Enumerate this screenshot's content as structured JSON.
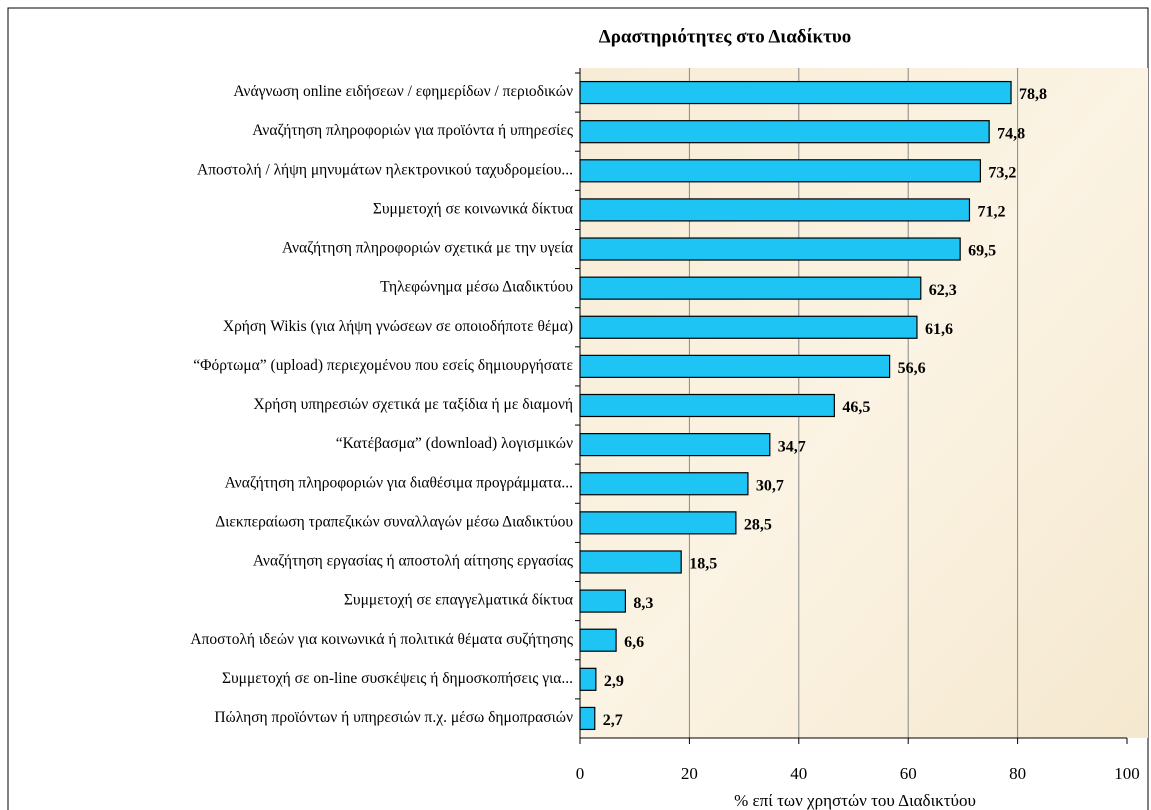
{
  "chart_data": {
    "type": "hbar",
    "title": "Δραστηριότητες στο Διαδίκτυο",
    "x_label": "% επί των χρηστών του Διαδικτύου",
    "categories": [
      "Ανάγνωση online ειδήσεων / εφημερίδων / περιοδικών",
      "Αναζήτηση πληροφοριών για προϊόντα ή υπηρεσίες",
      "Αποστολή / λήψη μηνυμάτων ηλεκτρονικού ταχυδρομείου...",
      "Συμμετοχή σε κοινωνικά δίκτυα",
      "Αναζήτηση πληροφοριών σχετικά με την υγεία",
      "Τηλεφώνημα μέσω Διαδικτύου",
      "Χρήση Wikis (για λήψη γνώσεων σε οποιοδήποτε θέμα)",
      "“Φόρτωμα” (upload) περιεχομένου που εσείς δημιουργήσατε",
      "Χρήση υπηρεσιών σχετικά με ταξίδια ή με διαμονή",
      "“Κατέβασμα” (download) λογισμικών",
      "Αναζήτηση πληροφοριών για διαθέσιμα προγράμματα...",
      "Διεκπεραίωση τραπεζικών συναλλαγών μέσω Διαδικτύου",
      "Αναζήτηση εργασίας ή αποστολή αίτησης εργασίας",
      "Συμμετοχή σε επαγγελματικά δίκτυα",
      "Αποστολή ιδεών για κοινωνικά ή πολιτικά θέματα συζήτησης",
      "Συμμετοχή σε on-line συσκέψεις ή δημοσκοπήσεις για...",
      "Πώληση προϊόντων ή υπηρεσιών π.χ. μέσω δημοπρασιών"
    ],
    "values": [
      78.8,
      74.8,
      73.2,
      71.2,
      69.5,
      62.3,
      61.6,
      56.6,
      46.5,
      34.7,
      30.7,
      28.5,
      18.5,
      8.3,
      6.6,
      2.9,
      2.7
    ],
    "value_labels": [
      "78,8",
      "74,8",
      "73,2",
      "71,2",
      "69,5",
      "62,3",
      "61,6",
      "56,6",
      "46,5",
      "34,7",
      "30,7",
      "28,5",
      "18,5",
      "8,3",
      "6,6",
      "2,9",
      "2,7"
    ],
    "color": "#1ec4f4",
    "xlim": [
      0,
      100
    ],
    "xticks": [
      0,
      20,
      40,
      60,
      80,
      100
    ],
    "grid": true
  }
}
